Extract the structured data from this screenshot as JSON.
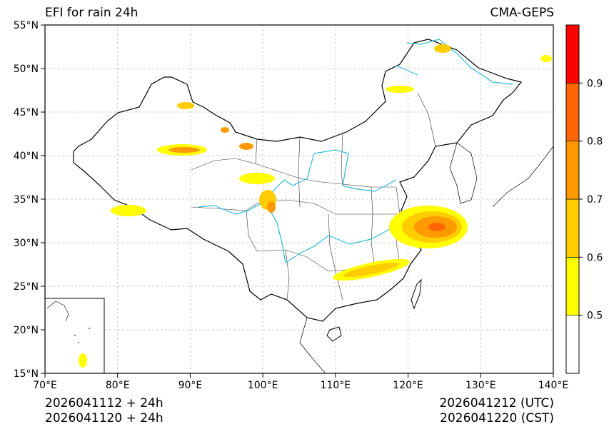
{
  "header": {
    "title": "EFI for rain 24h",
    "source": "CMA-GEPS"
  },
  "footer": {
    "init_utc": "2026041112 + 24h",
    "init_cst": "2026041120 + 24h",
    "valid_utc": "2026041212 (UTC)",
    "valid_cst": "2026041220 (CST)"
  },
  "map": {
    "lon_range": [
      70,
      140
    ],
    "lat_range": [
      15,
      55
    ],
    "lon_ticks": [
      "70°E",
      "80°E",
      "90°E",
      "100°E",
      "110°E",
      "120°E",
      "130°E",
      "140°E"
    ],
    "lat_ticks": [
      "15°N",
      "20°N",
      "25°N",
      "30°N",
      "35°N",
      "40°N",
      "45°N",
      "50°N",
      "55°N"
    ],
    "grid": true,
    "inset": "South China Sea (bottom-left)"
  },
  "colorbar": {
    "labels": [
      "0.5",
      "0.6",
      "0.7",
      "0.8",
      "0.9"
    ],
    "bins": [
      {
        "from": 0.4,
        "to": 0.5,
        "color": "#ffffff"
      },
      {
        "from": 0.5,
        "to": 0.6,
        "color": "#ffff00"
      },
      {
        "from": 0.6,
        "to": 0.7,
        "color": "#ffcc00"
      },
      {
        "from": 0.7,
        "to": 0.8,
        "color": "#ff9900"
      },
      {
        "from": 0.8,
        "to": 0.9,
        "color": "#ff6600"
      },
      {
        "from": 0.9,
        "to": 1.0,
        "color": "#ff0000"
      }
    ]
  },
  "colors": {
    "border": "#000000",
    "river": "#2bbbd8",
    "province": "#333333",
    "grid": "#bbbbbb"
  }
}
